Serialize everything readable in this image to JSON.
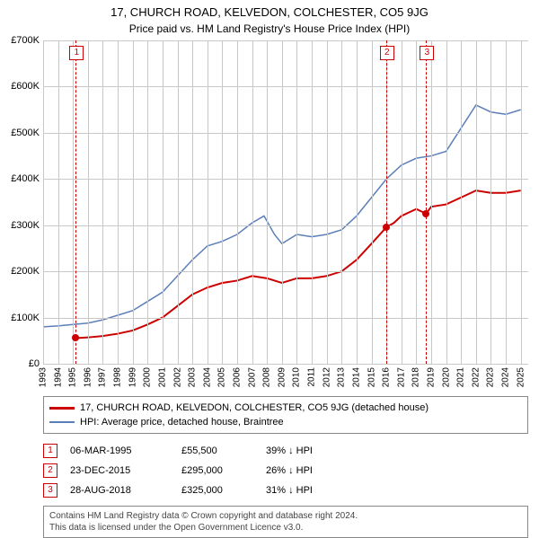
{
  "title": "17, CHURCH ROAD, KELVEDON, COLCHESTER, CO5 9JG",
  "subtitle": "Price paid vs. HM Land Registry's House Price Index (HPI)",
  "chart": {
    "type": "line",
    "background_color": "#ffffff",
    "grid_color": "#c8c8c8",
    "x_years": [
      1993,
      1994,
      1995,
      1996,
      1997,
      1998,
      1999,
      2000,
      2001,
      2002,
      2003,
      2004,
      2005,
      2006,
      2007,
      2008,
      2009,
      2010,
      2011,
      2012,
      2013,
      2014,
      2015,
      2016,
      2017,
      2018,
      2019,
      2020,
      2021,
      2022,
      2023,
      2024,
      2025
    ],
    "xlim": [
      1993,
      2025.5
    ],
    "ylim": [
      0,
      700000
    ],
    "ytick_step": 100000,
    "ytick_labels": [
      "£0",
      "£100K",
      "£200K",
      "£300K",
      "£400K",
      "£500K",
      "£600K",
      "£700K"
    ],
    "series": [
      {
        "name": "price_paid",
        "color": "#cc0000",
        "width": 2,
        "data": [
          [
            1995.18,
            55500
          ],
          [
            1996,
            57000
          ],
          [
            1997,
            60000
          ],
          [
            1998,
            65000
          ],
          [
            1999,
            72000
          ],
          [
            2000,
            85000
          ],
          [
            2001,
            100000
          ],
          [
            2002,
            125000
          ],
          [
            2003,
            150000
          ],
          [
            2004,
            165000
          ],
          [
            2005,
            175000
          ],
          [
            2006,
            180000
          ],
          [
            2007,
            190000
          ],
          [
            2008,
            185000
          ],
          [
            2009,
            175000
          ],
          [
            2010,
            185000
          ],
          [
            2011,
            185000
          ],
          [
            2012,
            190000
          ],
          [
            2013,
            200000
          ],
          [
            2014,
            225000
          ],
          [
            2015,
            260000
          ],
          [
            2015.98,
            295000
          ],
          [
            2016.5,
            305000
          ],
          [
            2017,
            320000
          ],
          [
            2018,
            335000
          ],
          [
            2018.66,
            325000
          ],
          [
            2019,
            340000
          ],
          [
            2020,
            345000
          ],
          [
            2021,
            360000
          ],
          [
            2022,
            375000
          ],
          [
            2023,
            370000
          ],
          [
            2024,
            370000
          ],
          [
            2025,
            375000
          ]
        ]
      },
      {
        "name": "hpi",
        "color": "#5b7fb8",
        "width": 1.5,
        "data": [
          [
            1993,
            80000
          ],
          [
            1994,
            82000
          ],
          [
            1995,
            85000
          ],
          [
            1996,
            88000
          ],
          [
            1997,
            95000
          ],
          [
            1998,
            105000
          ],
          [
            1999,
            115000
          ],
          [
            2000,
            135000
          ],
          [
            2001,
            155000
          ],
          [
            2002,
            190000
          ],
          [
            2003,
            225000
          ],
          [
            2004,
            255000
          ],
          [
            2005,
            265000
          ],
          [
            2006,
            280000
          ],
          [
            2007,
            305000
          ],
          [
            2007.8,
            320000
          ],
          [
            2008.5,
            280000
          ],
          [
            2009,
            260000
          ],
          [
            2010,
            280000
          ],
          [
            2011,
            275000
          ],
          [
            2012,
            280000
          ],
          [
            2013,
            290000
          ],
          [
            2014,
            320000
          ],
          [
            2015,
            360000
          ],
          [
            2016,
            400000
          ],
          [
            2017,
            430000
          ],
          [
            2018,
            445000
          ],
          [
            2019,
            450000
          ],
          [
            2020,
            460000
          ],
          [
            2021,
            510000
          ],
          [
            2022,
            560000
          ],
          [
            2023,
            545000
          ],
          [
            2024,
            540000
          ],
          [
            2025,
            550000
          ]
        ]
      }
    ],
    "markers": [
      {
        "n": "1",
        "year": 1995.18,
        "price": 55500
      },
      {
        "n": "2",
        "year": 2015.98,
        "price": 295000
      },
      {
        "n": "3",
        "year": 2018.66,
        "price": 325000
      }
    ]
  },
  "legend": {
    "items": [
      {
        "color": "#cc0000",
        "label": "17, CHURCH ROAD, KELVEDON, COLCHESTER, CO5 9JG (detached house)"
      },
      {
        "color": "#5b7fb8",
        "label": "HPI: Average price, detached house, Braintree"
      }
    ]
  },
  "transactions": [
    {
      "n": "1",
      "date": "06-MAR-1995",
      "price": "£55,500",
      "pct": "39% ↓ HPI"
    },
    {
      "n": "2",
      "date": "23-DEC-2015",
      "price": "£295,000",
      "pct": "26% ↓ HPI"
    },
    {
      "n": "3",
      "date": "28-AUG-2018",
      "price": "£325,000",
      "pct": "31% ↓ HPI"
    }
  ],
  "footer": {
    "line1": "Contains HM Land Registry data © Crown copyright and database right 2024.",
    "line2": "This data is licensed under the Open Government Licence v3.0."
  },
  "fonts": {
    "title_size": 13,
    "subtitle_size": 12,
    "tick_size": 11,
    "legend_size": 11,
    "footer_size": 10
  }
}
